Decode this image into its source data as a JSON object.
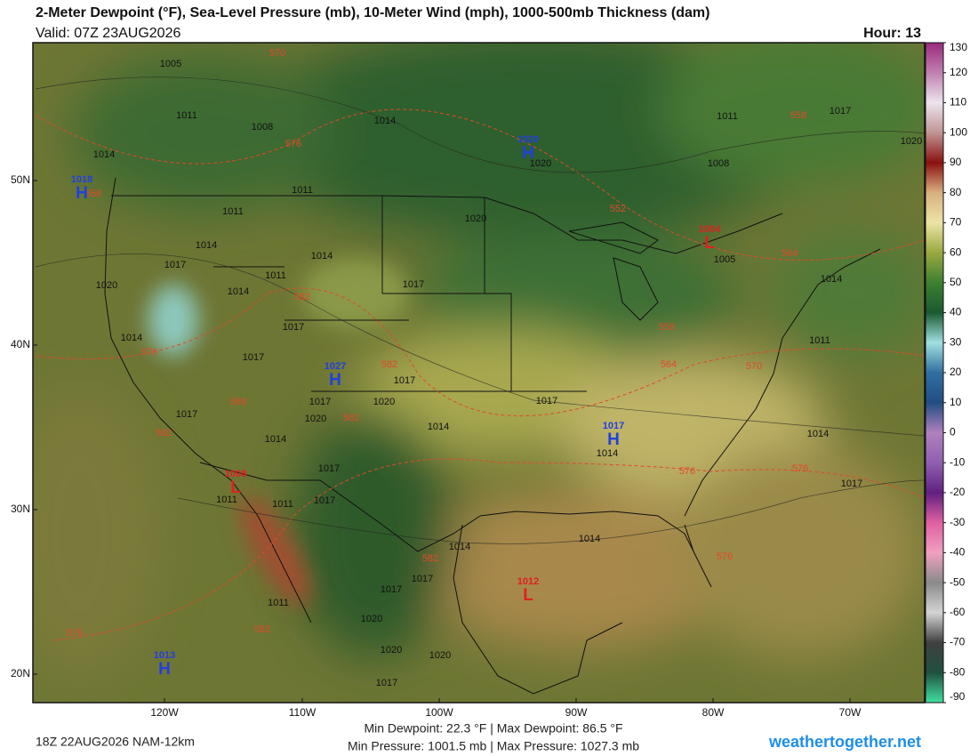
{
  "header": {
    "title": "2-Meter Dewpoint (°F), Sea-Level Pressure (mb), 10-Meter Wind (mph), 1000-500mb Thickness (dam)",
    "valid": "Valid: 07Z 23AUG2026",
    "hour": "Hour: 13"
  },
  "map": {
    "lat_labels": [
      "50N",
      "40N",
      "30N",
      "20N"
    ],
    "lon_labels": [
      "120W",
      "110W",
      "100W",
      "90W",
      "80W",
      "70W"
    ],
    "pressure_labels": [
      "1005",
      "1011",
      "1008",
      "1014",
      "1014",
      "1011",
      "1011",
      "1014",
      "1017",
      "1014",
      "1020",
      "1014",
      "1011",
      "1017",
      "1017",
      "1014",
      "1017",
      "1017",
      "1020",
      "1017",
      "1020",
      "1017",
      "1014",
      "1014",
      "1017",
      "1017",
      "1014",
      "1011",
      "1011",
      "1017",
      "1014",
      "1014",
      "1017",
      "1017",
      "1011",
      "1020",
      "1020",
      "1020",
      "1017",
      "1020",
      "1020",
      "1011",
      "1008",
      "1005",
      "1011",
      "1014",
      "1014",
      "1017",
      "1020",
      "1017"
    ],
    "thickness_labels": [
      "570",
      "576",
      "558",
      "582",
      "576",
      "582",
      "582",
      "588",
      "582",
      "552",
      "564",
      "558",
      "564",
      "570",
      "576",
      "576",
      "576",
      "582",
      "582",
      "576",
      "558"
    ],
    "highs": [
      {
        "letter": "H",
        "value": "1018"
      },
      {
        "letter": "H",
        "value": "1020"
      },
      {
        "letter": "H",
        "value": "1027"
      },
      {
        "letter": "H",
        "value": "1017"
      },
      {
        "letter": "H",
        "value": "1013"
      }
    ],
    "lows": [
      {
        "letter": "L",
        "value": "1004"
      },
      {
        "letter": "L",
        "value": "1008"
      },
      {
        "letter": "L",
        "value": "1012"
      }
    ]
  },
  "colorbar": {
    "range": [
      -90,
      130
    ],
    "ticks": [
      130,
      120,
      110,
      100,
      90,
      80,
      70,
      60,
      50,
      40,
      30,
      20,
      10,
      0,
      -10,
      -20,
      -30,
      -40,
      -50,
      -60,
      -70,
      -80,
      -90
    ],
    "colors": [
      "#9a2a7c",
      "#c080b0",
      "#ece4ec",
      "#c09494",
      "#8b1010",
      "#d8b080",
      "#ece4a4",
      "#9aa840",
      "#3c8030",
      "#1a5a30",
      "#a0e0e0",
      "#3070a0",
      "#204e80",
      "#b080c0",
      "#9060b0",
      "#602080",
      "#e060a0",
      "#f0a0c0",
      "#8a8a8a",
      "#d4d4d4",
      "#404040",
      "#205040",
      "#40e0a0"
    ]
  },
  "footer": {
    "run": "18Z 22AUG2026 NAM-12km",
    "dewpoint_range": "Min Dewpoint:  22.3 °F | Max Dewpoint:  86.5 °F",
    "pressure_range": "Min Pressure: 1001.5 mb | Max Pressure: 1027.3 mb",
    "site": "weathertogether.net"
  }
}
